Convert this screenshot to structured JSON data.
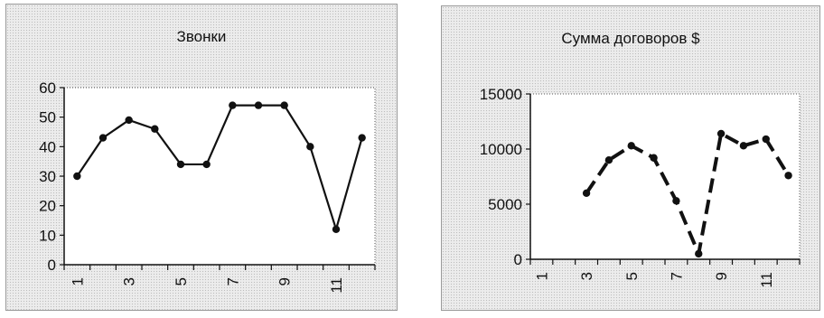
{
  "chart_data": [
    {
      "type": "line",
      "title": "Звонки",
      "xlabel": "",
      "ylabel": "",
      "x": [
        1,
        2,
        3,
        4,
        5,
        6,
        7,
        8,
        9,
        10,
        11,
        12
      ],
      "xtick_labels": [
        "1",
        "3",
        "5",
        "7",
        "9",
        "11"
      ],
      "series": [
        {
          "values": [
            30,
            43,
            49,
            46,
            34,
            34,
            54,
            54,
            54,
            40,
            12,
            43
          ]
        }
      ],
      "ylim": [
        0,
        60
      ],
      "yticks": [
        "0",
        "10",
        "20",
        "30",
        "40",
        "50",
        "60"
      ],
      "line_style": "solid",
      "grid": false,
      "legend": "none",
      "colors": {
        "line": "#111111",
        "marker": "#111111",
        "plot_bg": "#ffffff"
      }
    },
    {
      "type": "line",
      "title": "Сумма договоров $",
      "xlabel": "",
      "ylabel": "",
      "x": [
        1,
        2,
        3,
        4,
        5,
        6,
        7,
        8,
        9,
        10,
        11,
        12
      ],
      "xtick_labels": [
        "1",
        "3",
        "5",
        "7",
        "9",
        "11"
      ],
      "series": [
        {
          "values": [
            null,
            null,
            6000,
            9000,
            10300,
            9200,
            5300,
            500,
            11400,
            10300,
            10900,
            7600
          ]
        }
      ],
      "ylim": [
        0,
        15000
      ],
      "yticks": [
        "0",
        "5000",
        "10000",
        "15000"
      ],
      "line_style": "dashed",
      "grid": false,
      "legend": "none",
      "colors": {
        "line": "#111111",
        "marker": "#111111",
        "plot_bg": "#ffffff"
      }
    }
  ]
}
